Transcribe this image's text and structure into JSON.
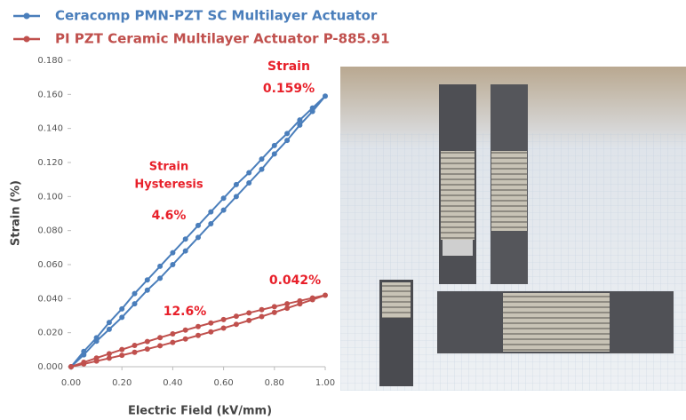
{
  "chart_data": {
    "type": "line",
    "series": [
      {
        "name": "Ceracomp PMN-PZT SC Multilayer Actuator",
        "color": "#4a7ebb",
        "values": [
          0,
          0.007,
          0.015,
          0.022,
          0.029,
          0.037,
          0.045,
          0.052,
          0.06,
          0.068,
          0.076,
          0.084,
          0.092,
          0.1,
          0.108,
          0.116,
          0.125,
          0.133,
          0.142,
          0.15,
          0.159,
          0.152,
          0.145,
          0.137,
          0.13,
          0.122,
          0.114,
          0.107,
          0.099,
          0.091,
          0.083,
          0.075,
          0.067,
          0.059,
          0.051,
          0.043,
          0.034,
          0.026,
          0.017,
          0.009,
          0
        ]
      },
      {
        "name": "PI PZT Ceramic Multilayer Actuator P-885.91",
        "color": "#c0504d",
        "values": [
          0,
          0.0016,
          0.0033,
          0.005,
          0.0067,
          0.0085,
          0.0104,
          0.0123,
          0.0143,
          0.0163,
          0.0184,
          0.0205,
          0.0227,
          0.0249,
          0.0272,
          0.0295,
          0.0319,
          0.0344,
          0.0369,
          0.0394,
          0.042,
          0.0404,
          0.0387,
          0.037,
          0.0353,
          0.0335,
          0.0316,
          0.0297,
          0.0277,
          0.0257,
          0.0236,
          0.0215,
          0.0193,
          0.0171,
          0.0148,
          0.0125,
          0.0101,
          0.0076,
          0.0051,
          0.0026,
          0
        ]
      }
    ],
    "x": [
      0,
      0.05,
      0.1,
      0.15,
      0.2,
      0.25,
      0.3,
      0.35,
      0.4,
      0.45,
      0.5,
      0.55,
      0.6,
      0.65,
      0.7,
      0.75,
      0.8,
      0.85,
      0.9,
      0.95,
      1,
      0.95,
      0.9,
      0.85,
      0.8,
      0.75,
      0.7,
      0.65,
      0.6,
      0.55,
      0.5,
      0.45,
      0.4,
      0.35,
      0.3,
      0.25,
      0.2,
      0.15,
      0.1,
      0.05,
      0
    ],
    "xlabel": "Electric Field (kV/mm)",
    "ylabel": "Strain (%)",
    "xlim": [
      0,
      1
    ],
    "ylim": [
      0,
      0.18
    ],
    "xticks": [
      {
        "value": 0,
        "label": "0.00"
      },
      {
        "value": 0.2,
        "label": "0.20"
      },
      {
        "value": 0.4,
        "label": "0.40"
      },
      {
        "value": 0.6,
        "label": "0.60"
      },
      {
        "value": 0.8,
        "label": "0.80"
      },
      {
        "value": 1,
        "label": "1.00"
      }
    ],
    "yticks": [
      {
        "value": 0,
        "label": "0.000"
      },
      {
        "value": 0.02,
        "label": "0.020"
      },
      {
        "value": 0.04,
        "label": "0.040"
      },
      {
        "value": 0.06,
        "label": "0.060"
      },
      {
        "value": 0.08,
        "label": "0.080"
      },
      {
        "value": 0.1,
        "label": "0.100"
      },
      {
        "value": 0.12,
        "label": "0.120"
      },
      {
        "value": 0.14,
        "label": "0.140"
      },
      {
        "value": 0.16,
        "label": "0.160"
      },
      {
        "value": 0.18,
        "label": "0.180"
      }
    ],
    "annotations": [
      "Strain",
      "0.159%",
      "Strain",
      "Hysteresis",
      "4.6%",
      "12.6%",
      "0.042%"
    ],
    "annotation_color": "#e8202a"
  }
}
